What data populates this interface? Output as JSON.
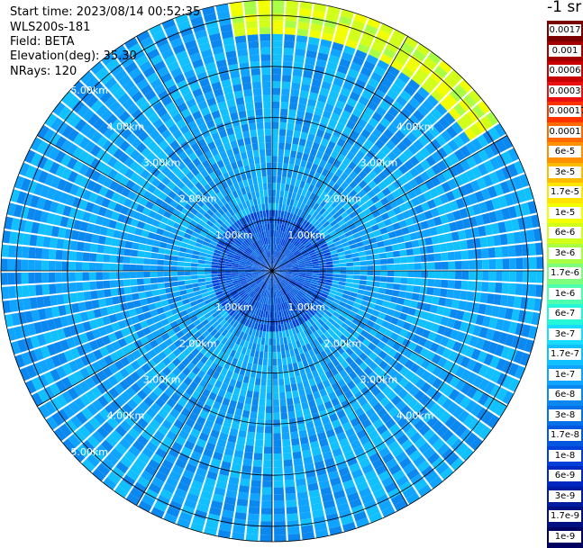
{
  "info": {
    "start_time": "Start time: 2023/08/14 00:52:35",
    "instrument": "WLS200s-181",
    "field": "Field: BETA",
    "elevation": "Elevation(deg): 35.30",
    "nrays": "NRays: 120"
  },
  "colorbar": {
    "title": "-1 sr",
    "labels": [
      "0.0017",
      "0.001",
      "0.0006",
      "0.0003",
      "0.00017",
      "0.0001",
      "6e-5",
      "3e-5",
      "1.7e-5",
      "1e-5",
      "6e-6",
      "3e-6",
      "1.7e-6",
      "1e-6",
      "6e-7",
      "3e-7",
      "1.7e-7",
      "1e-7",
      "6e-8",
      "3e-8",
      "1.7e-8",
      "1e-8",
      "6e-9",
      "3e-9",
      "1.7e-9",
      "1e-9"
    ],
    "colors": [
      "#7a0000",
      "#a30000",
      "#c80000",
      "#e81010",
      "#ff3300",
      "#ff6a00",
      "#ff9100",
      "#ffbb00",
      "#ffe400",
      "#f2ff00",
      "#d2ff1a",
      "#a8ff44",
      "#7dff7d",
      "#4effae",
      "#26f6d8",
      "#18dcff",
      "#10c0ff",
      "#0ea4ff",
      "#0a88f0",
      "#0670e8",
      "#0458e0",
      "#0040d8",
      "#0028c0",
      "#001aa0",
      "#001080",
      "#000060"
    ]
  },
  "chart_data": {
    "type": "heatmap",
    "projection": "polar (PPI scan)",
    "field": "BETA",
    "units": "sr-1",
    "elevation_deg": 35.3,
    "nrays": 120,
    "range_rings_km": [
      1,
      2,
      3,
      4,
      5
    ],
    "range_ring_labels": [
      "1.00km",
      "2.00km",
      "3.00km",
      "4.00km",
      "5.00km"
    ],
    "azimuth_lines_deg": [
      0,
      30,
      60,
      90,
      120,
      150,
      180,
      210,
      240,
      270,
      300,
      330
    ],
    "max_range_km": 5.3,
    "color_scale": "log",
    "value_range": [
      1e-09,
      0.0017
    ],
    "typical_value": 1e-07,
    "high_value_sector_deg": [
      -8,
      58
    ],
    "high_value_sector_min_range_km": 4.7,
    "high_value_sector_peak": 1e-05,
    "near_field_range_km": 1.2,
    "near_field_value": 1.7e-08,
    "grid": true
  }
}
